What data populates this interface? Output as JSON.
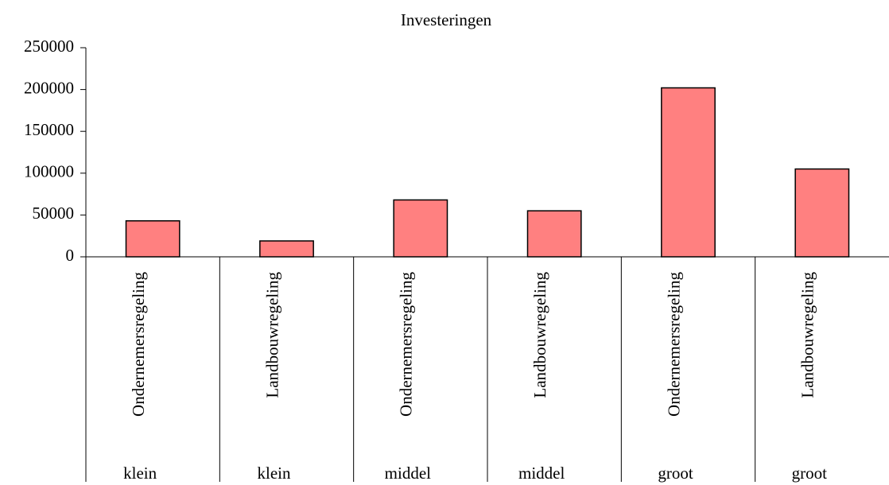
{
  "chart_data": {
    "type": "bar",
    "title": "Investeringen",
    "categories": [
      "Ondernemersregeling",
      "Landbouwregeling",
      "Ondernemersregeling",
      "Landbouwregeling",
      "Ondernemersregeling",
      "Landbouwregeling"
    ],
    "groups": [
      "klein",
      "klein",
      "middel",
      "middel",
      "groot",
      "groot"
    ],
    "values": [
      43000,
      19000,
      68000,
      55000,
      202000,
      105000
    ],
    "color": "#ff8080",
    "ylim": [
      0,
      250000
    ],
    "yticks": [
      0,
      50000,
      100000,
      150000,
      200000,
      250000
    ],
    "grid": false
  }
}
